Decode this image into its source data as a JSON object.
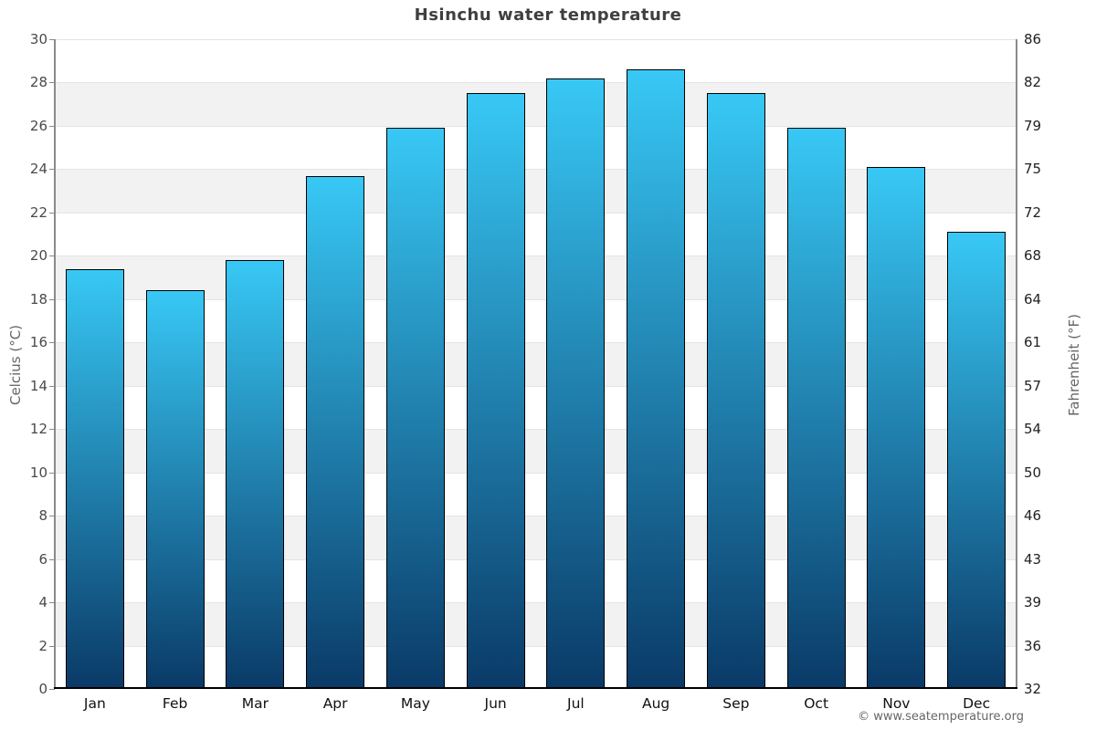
{
  "chart_data": {
    "type": "bar",
    "title": "Hsinchu water temperature",
    "categories": [
      "Jan",
      "Feb",
      "Mar",
      "Apr",
      "May",
      "Jun",
      "Jul",
      "Aug",
      "Sep",
      "Oct",
      "Nov",
      "Dec"
    ],
    "values": [
      19.4,
      18.4,
      19.8,
      23.7,
      25.9,
      27.5,
      28.2,
      28.6,
      27.5,
      25.9,
      24.1,
      21.1
    ],
    "series_name": "Water temperature",
    "xlabel": "",
    "ylabel_left": "Celcius (°C)",
    "ylabel_right": "Fahrenheit (°F)",
    "ylim": [
      0,
      30
    ],
    "yticks_celsius": [
      0,
      2,
      4,
      6,
      8,
      10,
      12,
      14,
      16,
      18,
      20,
      22,
      24,
      26,
      28,
      30
    ],
    "yticks_fahrenheit": [
      32,
      36,
      39,
      43,
      46,
      50,
      54,
      57,
      61,
      64,
      68,
      72,
      75,
      79,
      82,
      86
    ],
    "grid": "alternating horizontal bands every 2°C",
    "legend": "none",
    "colors": {
      "bar_gradient_top": "#38c8f5",
      "bar_gradient_bottom": "#0a3a67",
      "bar_border": "#000000",
      "band_gray": "#f2f2f2",
      "band_white": "#ffffff",
      "gridline": "#e4e4e4",
      "title_text": "#3f3f3f",
      "axis_text": "#4a4a4a"
    }
  },
  "footer": {
    "copyright": "© www.seatemperature.org"
  }
}
